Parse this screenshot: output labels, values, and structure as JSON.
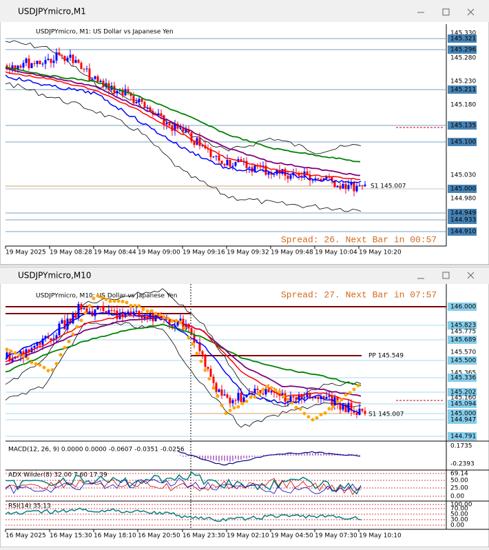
{
  "windows": [
    {
      "title": "USDJPYmicro,M1",
      "header": "USDJPYmicro, M1:  US Dollar vs Japanese Yen",
      "price_labels": [
        "145.330",
        "145.321",
        "145.296",
        "145.280",
        "145.230",
        "145.211",
        "145.180",
        "145.135",
        "145.100",
        "145.030",
        "145.000",
        "144.980",
        "144.949",
        "144.933",
        "144.910"
      ],
      "levels": [
        "S1 145.007"
      ],
      "status": "Spread: 26. Next Bar in 00:57",
      "time_labels": [
        "19 May 2025",
        "19 May 08:28",
        "19 May 08:44",
        "19 May 09:00",
        "19 May 09:16",
        "19 May 09:32",
        "19 May 09:48",
        "19 May 10:04",
        "19 May 10:20"
      ]
    },
    {
      "title": "USDJPYmicro,M10",
      "header": "USDJPYmicro, M10:  US Dollar vs Japanese Yen",
      "price_labels": [
        "146.000",
        "145.823",
        "145.775",
        "145.689",
        "145.570",
        "145.500",
        "145.365",
        "145.336",
        "145.202",
        "145.160",
        "145.094",
        "145.000",
        "144.947",
        "144.791"
      ],
      "levels": [
        "PP 145.549",
        "S1 145.007"
      ],
      "status": "Spread: 27. Next Bar in 07:57",
      "indicators": [
        {
          "label": "MACD(12, 26, 9) 0.0000 0.0000 -0.0607 -0.0351 -0.0256",
          "axis_labels": [
            "0.1735",
            "-0.2393"
          ]
        },
        {
          "label": "ADX Wilder(8) 32.00 7.60 17.39",
          "axis_labels": [
            "69.14",
            "50.00",
            "25.00",
            "0.00"
          ]
        },
        {
          "label": "RSI(14) 35.13",
          "axis_labels": [
            "100.00",
            "70.00",
            "50.00",
            "30.00",
            "0.00"
          ]
        }
      ],
      "time_labels": [
        "16 May 2025",
        "16 May 15:30",
        "16 May 18:10",
        "16 May 20:50",
        "16 May 23:30",
        "19 May 02:10",
        "19 May 04:50",
        "19 May 07:30",
        "19 May 10:10"
      ]
    }
  ]
}
